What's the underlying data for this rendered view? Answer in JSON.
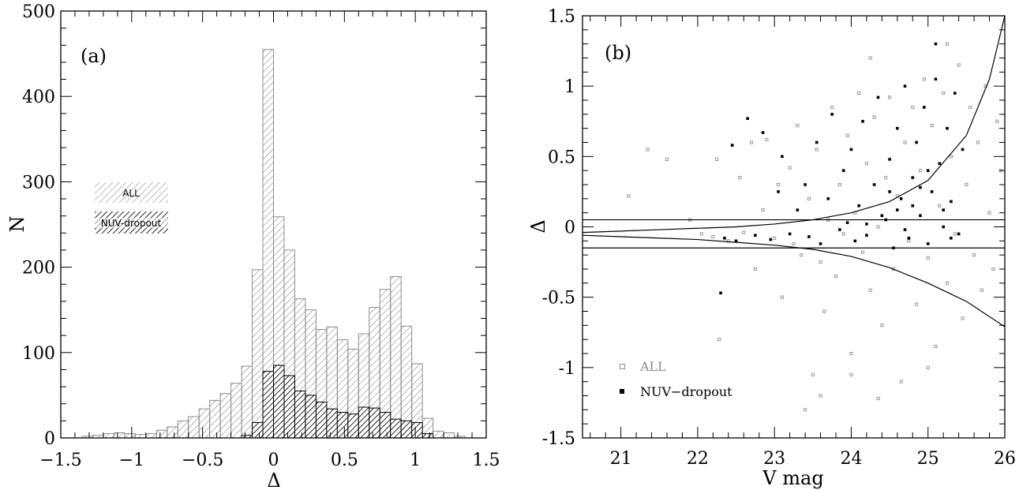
{
  "chart_data": [
    {
      "type": "histogram",
      "panel_label": "(a)",
      "xlabel": "Δ",
      "ylabel": "N",
      "xlim": [
        -1.5,
        1.5
      ],
      "ylim": [
        0,
        500
      ],
      "xticks": [
        -1.5,
        -1,
        -0.5,
        0,
        0.5,
        1,
        1.5
      ],
      "xtick_labels": [
        "−1.5",
        "−1",
        "−0.5",
        "0",
        "0.5",
        "1",
        "1.5"
      ],
      "yticks": [
        0,
        100,
        200,
        300,
        400,
        500
      ],
      "ytick_labels": [
        "0",
        "100",
        "200",
        "300",
        "400",
        "500"
      ],
      "bin_width": 0.075,
      "legend": [
        {
          "label": "ALL",
          "style": "light-hatch"
        },
        {
          "label": "NUV-dropout",
          "style": "dark-hatch"
        }
      ],
      "series": [
        {
          "name": "ALL",
          "style": "light-hatch",
          "bin_left_edges": [
            -1.35,
            -1.275,
            -1.2,
            -1.125,
            -1.05,
            -0.975,
            -0.9,
            -0.825,
            -0.75,
            -0.675,
            -0.6,
            -0.525,
            -0.45,
            -0.375,
            -0.3,
            -0.225,
            -0.15,
            -0.075,
            0.0,
            0.075,
            0.15,
            0.225,
            0.3,
            0.375,
            0.45,
            0.525,
            0.6,
            0.675,
            0.75,
            0.825,
            0.9,
            0.975,
            1.05,
            1.125,
            1.2,
            1.275
          ],
          "counts": [
            2,
            3,
            5,
            6,
            5,
            4,
            5,
            9,
            13,
            20,
            25,
            34,
            44,
            52,
            64,
            84,
            197,
            455,
            259,
            220,
            163,
            150,
            127,
            130,
            115,
            104,
            122,
            153,
            174,
            189,
            131,
            87,
            23,
            8,
            6,
            2
          ]
        },
        {
          "name": "NUV-dropout",
          "style": "dark-hatch",
          "bin_left_edges": [
            -0.225,
            -0.15,
            -0.075,
            0.0,
            0.075,
            0.15,
            0.225,
            0.3,
            0.375,
            0.45,
            0.525,
            0.6,
            0.675,
            0.75,
            0.825,
            0.9,
            0.975,
            1.05
          ],
          "counts": [
            3,
            18,
            78,
            85,
            73,
            55,
            50,
            42,
            34,
            30,
            28,
            36,
            35,
            30,
            22,
            20,
            18,
            5
          ]
        }
      ]
    },
    {
      "type": "scatter",
      "panel_label": "(b)",
      "xlabel": "V mag",
      "ylabel": "Δ",
      "xlim": [
        20.5,
        26
      ],
      "ylim": [
        -1.5,
        1.5
      ],
      "xticks": [
        21,
        22,
        23,
        24,
        25,
        26
      ],
      "xtick_labels": [
        "21",
        "22",
        "23",
        "24",
        "25",
        "26"
      ],
      "yticks": [
        -1.5,
        -1,
        -0.5,
        0,
        0.5,
        1,
        1.5
      ],
      "ytick_labels": [
        "-1.5",
        "-1",
        "-0.5",
        "0",
        "0.5",
        "1",
        "1.5"
      ],
      "legend": [
        {
          "label": "ALL",
          "marker": "open-square",
          "color": "#8c8c8c"
        },
        {
          "label": "NUV−dropout",
          "marker": "filled-square",
          "color": "#000000"
        }
      ],
      "reference_lines": [
        {
          "type": "horizontal",
          "y": 0.05
        },
        {
          "type": "horizontal",
          "y": -0.15
        },
        {
          "type": "curve",
          "points": [
            [
              20.5,
              -0.04
            ],
            [
              21,
              -0.03
            ],
            [
              21.5,
              -0.02
            ],
            [
              22,
              -0.01
            ],
            [
              22.5,
              0.0
            ],
            [
              23,
              0.02
            ],
            [
              23.5,
              0.05
            ],
            [
              24,
              0.1
            ],
            [
              24.5,
              0.18
            ],
            [
              25,
              0.33
            ],
            [
              25.5,
              0.65
            ],
            [
              25.8,
              1.05
            ],
            [
              26,
              1.5
            ]
          ]
        },
        {
          "type": "curve",
          "points": [
            [
              20.5,
              -0.06
            ],
            [
              21,
              -0.07
            ],
            [
              21.5,
              -0.08
            ],
            [
              22,
              -0.09
            ],
            [
              22.5,
              -0.11
            ],
            [
              23,
              -0.13
            ],
            [
              23.5,
              -0.16
            ],
            [
              24,
              -0.21
            ],
            [
              24.5,
              -0.29
            ],
            [
              25,
              -0.4
            ],
            [
              25.5,
              -0.53
            ],
            [
              26,
              -0.71
            ]
          ]
        }
      ],
      "series": [
        {
          "name": "ALL",
          "color": "#8c8c8c",
          "points": [
            [
              21.1,
              0.22
            ],
            [
              21.35,
              0.55
            ],
            [
              21.6,
              0.48
            ],
            [
              21.9,
              0.05
            ],
            [
              22.05,
              -0.05
            ],
            [
              22.2,
              -0.07
            ],
            [
              22.25,
              0.48
            ],
            [
              22.28,
              -0.8
            ],
            [
              22.4,
              -0.1
            ],
            [
              22.55,
              0.35
            ],
            [
              22.6,
              -0.04
            ],
            [
              22.7,
              0.6
            ],
            [
              22.75,
              -0.3
            ],
            [
              22.85,
              0.12
            ],
            [
              22.9,
              0.62
            ],
            [
              23.0,
              -0.08
            ],
            [
              23.05,
              0.3
            ],
            [
              23.1,
              -0.5
            ],
            [
              23.2,
              0.42
            ],
            [
              23.25,
              -0.12
            ],
            [
              23.3,
              0.72
            ],
            [
              23.35,
              -0.2
            ],
            [
              23.45,
              0.2
            ],
            [
              23.5,
              -1.05
            ],
            [
              23.55,
              0.55
            ],
            [
              23.6,
              -0.25
            ],
            [
              23.65,
              -0.6
            ],
            [
              23.7,
              0.05
            ],
            [
              23.75,
              0.85
            ],
            [
              23.8,
              -0.35
            ],
            [
              23.85,
              0.3
            ],
            [
              23.9,
              -0.05
            ],
            [
              23.95,
              0.65
            ],
            [
              24.0,
              -0.9
            ],
            [
              24.05,
              0.1
            ],
            [
              24.1,
              0.95
            ],
            [
              24.15,
              -0.18
            ],
            [
              24.2,
              0.45
            ],
            [
              24.25,
              -0.45
            ],
            [
              24.3,
              0.78
            ],
            [
              24.35,
              0.0
            ],
            [
              24.4,
              -0.7
            ],
            [
              24.45,
              0.35
            ],
            [
              24.5,
              0.92
            ],
            [
              24.55,
              -0.3
            ],
            [
              24.6,
              0.22
            ],
            [
              24.65,
              -1.1
            ],
            [
              24.7,
              0.6
            ],
            [
              24.75,
              -0.1
            ],
            [
              24.8,
              0.85
            ],
            [
              24.85,
              -0.55
            ],
            [
              24.9,
              0.4
            ],
            [
              24.95,
              1.05
            ],
            [
              25.0,
              -0.22
            ],
            [
              25.05,
              0.72
            ],
            [
              25.1,
              -0.85
            ],
            [
              25.15,
              0.15
            ],
            [
              25.2,
              0.95
            ],
            [
              25.25,
              -0.4
            ],
            [
              25.3,
              0.5
            ],
            [
              25.35,
              -0.05
            ],
            [
              25.4,
              1.15
            ],
            [
              25.45,
              -0.65
            ],
            [
              25.5,
              0.3
            ],
            [
              25.55,
              0.85
            ],
            [
              25.6,
              -0.2
            ],
            [
              25.65,
              0.6
            ],
            [
              25.7,
              -0.45
            ],
            [
              25.75,
              1.0
            ],
            [
              25.8,
              0.1
            ],
            [
              25.85,
              -0.3
            ],
            [
              25.9,
              0.75
            ],
            [
              25.95,
              0.4
            ],
            [
              24.35,
              -1.22
            ],
            [
              23.4,
              -1.3
            ],
            [
              25.0,
              -1.0
            ],
            [
              24.25,
              1.2
            ],
            [
              25.25,
              1.3
            ],
            [
              23.6,
              -1.2
            ],
            [
              24.0,
              -1.05
            ]
          ]
        },
        {
          "name": "NUV-dropout",
          "color": "#000000",
          "points": [
            [
              22.3,
              -0.47
            ],
            [
              22.35,
              -0.08
            ],
            [
              22.45,
              0.58
            ],
            [
              22.5,
              -0.1
            ],
            [
              22.65,
              0.77
            ],
            [
              22.75,
              -0.06
            ],
            [
              22.85,
              0.67
            ],
            [
              22.95,
              -0.09
            ],
            [
              23.05,
              0.25
            ],
            [
              23.1,
              0.5
            ],
            [
              23.2,
              -0.05
            ],
            [
              23.3,
              0.12
            ],
            [
              23.4,
              0.3
            ],
            [
              23.45,
              -0.07
            ],
            [
              23.55,
              0.6
            ],
            [
              23.6,
              -0.12
            ],
            [
              23.7,
              0.2
            ],
            [
              23.75,
              0.8
            ],
            [
              23.85,
              -0.02
            ],
            [
              23.9,
              0.4
            ],
            [
              24.0,
              0.55
            ],
            [
              24.05,
              -0.1
            ],
            [
              24.1,
              0.15
            ],
            [
              24.15,
              0.75
            ],
            [
              24.2,
              -0.06
            ],
            [
              24.3,
              0.3
            ],
            [
              24.35,
              0.92
            ],
            [
              24.45,
              0.05
            ],
            [
              24.5,
              0.48
            ],
            [
              24.55,
              -0.15
            ],
            [
              24.6,
              0.7
            ],
            [
              24.65,
              0.2
            ],
            [
              24.7,
              1.0
            ],
            [
              24.75,
              -0.08
            ],
            [
              24.8,
              0.35
            ],
            [
              24.85,
              0.6
            ],
            [
              24.9,
              0.08
            ],
            [
              24.95,
              0.85
            ],
            [
              25.0,
              -0.12
            ],
            [
              25.05,
              0.25
            ],
            [
              25.1,
              1.05
            ],
            [
              25.15,
              0.45
            ],
            [
              25.2,
              0.0
            ],
            [
              25.25,
              0.7
            ],
            [
              25.3,
              0.18
            ],
            [
              25.35,
              0.95
            ],
            [
              25.4,
              -0.05
            ],
            [
              25.45,
              0.55
            ],
            [
              25.1,
              1.3
            ],
            [
              24.6,
              0.12
            ],
            [
              24.2,
              0.02
            ],
            [
              24.9,
              0.28
            ],
            [
              25.2,
              0.12
            ],
            [
              24.4,
              0.08
            ],
            [
              23.95,
              0.03
            ],
            [
              24.7,
              -0.02
            ],
            [
              25.3,
              -0.08
            ],
            [
              24.5,
              0.25
            ],
            [
              25.0,
              0.4
            ],
            [
              24.8,
              0.15
            ]
          ]
        }
      ]
    }
  ]
}
